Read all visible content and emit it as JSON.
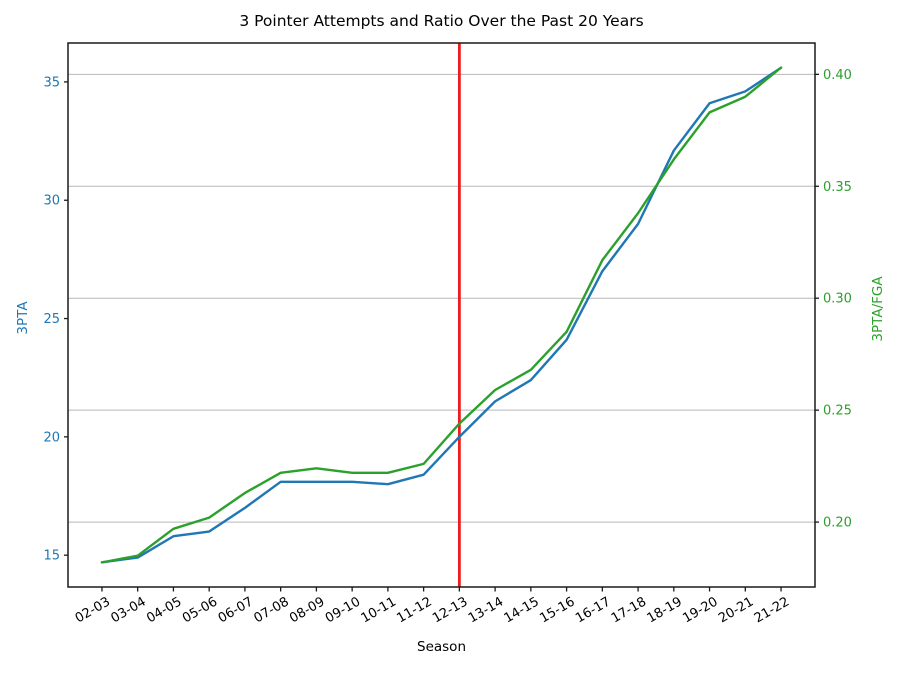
{
  "figure": {
    "title": "3 Pointer Attempts and Ratio Over the Past 20 Years",
    "x_label": "Season",
    "left_axis_label": "3PTA",
    "right_axis_label": "3PTA/FGA"
  },
  "colors": {
    "blue_series": "#1f77b4",
    "green_series": "#2ca02c",
    "red_vline": "#ee1c1c",
    "grid": "#b8b8b8",
    "spine": "#1a1a1a",
    "tick_text": "#000000"
  },
  "chart_data": {
    "type": "line",
    "title": "3 Pointer Attempts and Ratio Over the Past 20 Years",
    "xlabel": "Season",
    "categories": [
      "02-03",
      "03-04",
      "04-05",
      "05-06",
      "06-07",
      "07-08",
      "08-09",
      "09-10",
      "10-11",
      "11-12",
      "12-13",
      "13-14",
      "14-15",
      "15-16",
      "16-17",
      "17-18",
      "18-19",
      "19-20",
      "20-21",
      "21-22"
    ],
    "series": [
      {
        "name": "3PTA",
        "id": "blue-3pta-line",
        "axis": "left",
        "color": "#1f77b4",
        "values": [
          14.7,
          14.9,
          15.8,
          16.0,
          17.0,
          18.1,
          18.1,
          18.1,
          18.0,
          18.4,
          20.0,
          21.5,
          22.4,
          24.1,
          27.0,
          29.0,
          32.1,
          34.1,
          34.6,
          35.6
        ]
      },
      {
        "name": "3PTA/FGA",
        "id": "green-ratio-line",
        "axis": "right",
        "color": "#2ca02c",
        "values": [
          0.182,
          0.185,
          0.197,
          0.202,
          0.213,
          0.222,
          0.224,
          0.222,
          0.222,
          0.226,
          0.244,
          0.259,
          0.268,
          0.285,
          0.317,
          0.338,
          0.362,
          0.383,
          0.39,
          0.403
        ]
      }
    ],
    "left_axis": {
      "label": "3PTA",
      "ticks": [
        15,
        20,
        25,
        30,
        35
      ],
      "range": [
        13.655,
        36.645
      ],
      "color": "#1f77b4"
    },
    "right_axis": {
      "label": "3PTA/FGA",
      "ticks": [
        0.2,
        0.25,
        0.3,
        0.35,
        0.4
      ],
      "range": [
        0.171,
        0.414
      ],
      "color": "#2ca02c"
    },
    "x_range": [
      -0.95,
      19.95
    ],
    "x_tick_rotation_deg": 30,
    "annotations": [
      {
        "type": "vline",
        "x_category": "12-13",
        "color": "#ee1c1c"
      }
    ],
    "grid": "horizontal-right-axis",
    "legend": "none"
  }
}
